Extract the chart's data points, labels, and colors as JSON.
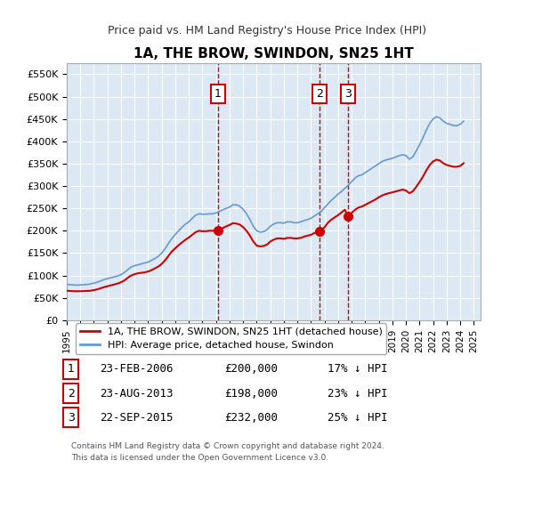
{
  "title": "1A, THE BROW, SWINDON, SN25 1HT",
  "subtitle": "Price paid vs. HM Land Registry's House Price Index (HPI)",
  "ylim": [
    0,
    575000
  ],
  "yticks": [
    0,
    50000,
    100000,
    150000,
    200000,
    250000,
    300000,
    350000,
    400000,
    450000,
    500000,
    550000
  ],
  "ytick_labels": [
    "£0",
    "£50K",
    "£100K",
    "£150K",
    "£200K",
    "£250K",
    "£300K",
    "£350K",
    "£400K",
    "£450K",
    "£500K",
    "£550K"
  ],
  "xlim_start": 1995.0,
  "xlim_end": 2025.5,
  "background_color": "#dce9f5",
  "plot_bg_color": "#dce9f5",
  "grid_color": "#ffffff",
  "red_line_color": "#cc0000",
  "blue_line_color": "#6699cc",
  "sale_marker_color": "#cc0000",
  "vline_color": "#cc0000",
  "annotation_box_color": "#cc0000",
  "sale_points": [
    {
      "year": 2006.14,
      "price": 200000,
      "label": "1"
    },
    {
      "year": 2013.64,
      "price": 198000,
      "label": "2"
    },
    {
      "year": 2015.73,
      "price": 232000,
      "label": "3"
    }
  ],
  "legend_entries": [
    "1A, THE BROW, SWINDON, SN25 1HT (detached house)",
    "HPI: Average price, detached house, Swindon"
  ],
  "table_rows": [
    {
      "num": "1",
      "date": "23-FEB-2006",
      "price": "£200,000",
      "hpi": "17% ↓ HPI"
    },
    {
      "num": "2",
      "date": "23-AUG-2013",
      "price": "£198,000",
      "hpi": "23% ↓ HPI"
    },
    {
      "num": "3",
      "date": "22-SEP-2015",
      "price": "£232,000",
      "hpi": "25% ↓ HPI"
    }
  ],
  "footer": "Contains HM Land Registry data © Crown copyright and database right 2024.\nThis data is licensed under the Open Government Licence v3.0.",
  "hpi_data": {
    "years": [
      1995.0,
      1995.25,
      1995.5,
      1995.75,
      1996.0,
      1996.25,
      1996.5,
      1996.75,
      1997.0,
      1997.25,
      1997.5,
      1997.75,
      1998.0,
      1998.25,
      1998.5,
      1998.75,
      1999.0,
      1999.25,
      1999.5,
      1999.75,
      2000.0,
      2000.25,
      2000.5,
      2000.75,
      2001.0,
      2001.25,
      2001.5,
      2001.75,
      2002.0,
      2002.25,
      2002.5,
      2002.75,
      2003.0,
      2003.25,
      2003.5,
      2003.75,
      2004.0,
      2004.25,
      2004.5,
      2004.75,
      2005.0,
      2005.25,
      2005.5,
      2005.75,
      2006.0,
      2006.25,
      2006.5,
      2006.75,
      2007.0,
      2007.25,
      2007.5,
      2007.75,
      2008.0,
      2008.25,
      2008.5,
      2008.75,
      2009.0,
      2009.25,
      2009.5,
      2009.75,
      2010.0,
      2010.25,
      2010.5,
      2010.75,
      2011.0,
      2011.25,
      2011.5,
      2011.75,
      2012.0,
      2012.25,
      2012.5,
      2012.75,
      2013.0,
      2013.25,
      2013.5,
      2013.75,
      2014.0,
      2014.25,
      2014.5,
      2014.75,
      2015.0,
      2015.25,
      2015.5,
      2015.75,
      2016.0,
      2016.25,
      2016.5,
      2016.75,
      2017.0,
      2017.25,
      2017.5,
      2017.75,
      2018.0,
      2018.25,
      2018.5,
      2018.75,
      2019.0,
      2019.25,
      2019.5,
      2019.75,
      2020.0,
      2020.25,
      2020.5,
      2020.75,
      2021.0,
      2021.25,
      2021.5,
      2021.75,
      2022.0,
      2022.25,
      2022.5,
      2022.75,
      2023.0,
      2023.25,
      2023.5,
      2023.75,
      2024.0,
      2024.25
    ],
    "values": [
      80000,
      79500,
      79000,
      78500,
      79000,
      79500,
      80000,
      81000,
      83000,
      85000,
      88000,
      91000,
      93000,
      95000,
      97000,
      99000,
      102000,
      107000,
      113000,
      119000,
      122000,
      124000,
      126000,
      128000,
      130000,
      134000,
      138000,
      143000,
      150000,
      160000,
      172000,
      183000,
      192000,
      200000,
      208000,
      215000,
      220000,
      228000,
      235000,
      238000,
      237000,
      237000,
      238000,
      238000,
      240000,
      243000,
      247000,
      250000,
      253000,
      258000,
      258000,
      255000,
      248000,
      238000,
      225000,
      210000,
      200000,
      197000,
      198000,
      202000,
      210000,
      215000,
      218000,
      218000,
      217000,
      220000,
      220000,
      218000,
      218000,
      220000,
      223000,
      225000,
      228000,
      233000,
      238000,
      243000,
      252000,
      260000,
      268000,
      275000,
      282000,
      288000,
      295000,
      302000,
      310000,
      318000,
      323000,
      325000,
      330000,
      335000,
      340000,
      345000,
      350000,
      355000,
      358000,
      360000,
      362000,
      365000,
      368000,
      370000,
      368000,
      360000,
      365000,
      378000,
      392000,
      408000,
      425000,
      440000,
      450000,
      455000,
      452000,
      445000,
      440000,
      438000,
      435000,
      435000,
      438000,
      445000
    ]
  },
  "red_data": {
    "years": [
      1995.0,
      1995.25,
      1995.5,
      1995.75,
      1996.0,
      1996.25,
      1996.5,
      1996.75,
      1997.0,
      1997.25,
      1997.5,
      1997.75,
      1998.0,
      1998.25,
      1998.5,
      1998.75,
      1999.0,
      1999.25,
      1999.5,
      1999.75,
      2000.0,
      2000.25,
      2000.5,
      2000.75,
      2001.0,
      2001.25,
      2001.5,
      2001.75,
      2002.0,
      2002.25,
      2002.5,
      2002.75,
      2003.0,
      2003.25,
      2003.5,
      2003.75,
      2004.0,
      2004.25,
      2004.5,
      2004.75,
      2005.0,
      2005.25,
      2005.5,
      2005.75,
      2006.14,
      2006.14,
      2006.25,
      2006.5,
      2006.75,
      2007.0,
      2007.25,
      2007.5,
      2007.75,
      2008.0,
      2008.25,
      2008.5,
      2008.75,
      2009.0,
      2009.25,
      2009.5,
      2009.75,
      2010.0,
      2010.25,
      2010.5,
      2010.75,
      2011.0,
      2011.25,
      2011.5,
      2011.75,
      2012.0,
      2012.25,
      2012.5,
      2012.75,
      2013.0,
      2013.25,
      2013.64,
      2013.64,
      2013.75,
      2014.0,
      2014.25,
      2014.5,
      2014.75,
      2015.0,
      2015.25,
      2015.5,
      2015.73,
      2015.73,
      2015.75,
      2016.0,
      2016.25,
      2016.5,
      2016.75,
      2017.0,
      2017.25,
      2017.5,
      2017.75,
      2018.0,
      2018.25,
      2018.5,
      2018.75,
      2019.0,
      2019.25,
      2019.5,
      2019.75,
      2020.0,
      2020.25,
      2020.5,
      2020.75,
      2021.0,
      2021.25,
      2021.5,
      2021.75,
      2022.0,
      2022.25,
      2022.5,
      2022.75,
      2023.0,
      2023.25,
      2023.5,
      2023.75,
      2024.0,
      2024.25
    ],
    "values": [
      66000,
      65500,
      65000,
      64800,
      65000,
      65200,
      65500,
      66000,
      67500,
      69000,
      71500,
      74000,
      76000,
      78000,
      80000,
      82000,
      85000,
      89000,
      95000,
      100000,
      103000,
      105000,
      106000,
      107000,
      109000,
      112000,
      116000,
      120000,
      126000,
      134000,
      144000,
      154000,
      161000,
      168000,
      174000,
      180000,
      185000,
      191000,
      197000,
      200000,
      199000,
      199000,
      200000,
      200000,
      200000,
      200000,
      202000,
      206000,
      210000,
      213000,
      217000,
      216000,
      214000,
      208000,
      200000,
      189000,
      176000,
      167000,
      165000,
      166000,
      169000,
      176000,
      180000,
      183000,
      183000,
      182000,
      184000,
      184000,
      183000,
      183000,
      184000,
      187000,
      189000,
      191000,
      195000,
      198000,
      198000,
      200000,
      208000,
      218000,
      225000,
      230000,
      235000,
      241000,
      247000,
      232000,
      232000,
      233000,
      240000,
      247000,
      252000,
      254000,
      258000,
      262000,
      266000,
      270000,
      275000,
      279000,
      282000,
      284000,
      286000,
      288000,
      290000,
      292000,
      290000,
      284000,
      288000,
      298000,
      309000,
      321000,
      335000,
      347000,
      355000,
      359000,
      357000,
      351000,
      347000,
      345000,
      343000,
      343000,
      345000,
      351000
    ]
  }
}
